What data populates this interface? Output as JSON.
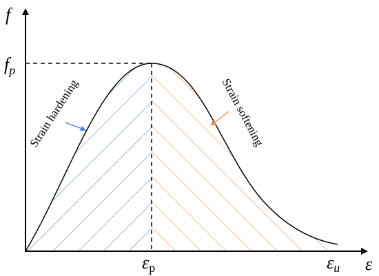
{
  "axes": {
    "y_label": "f",
    "x_label": "ε"
  },
  "ticks": {
    "peak_stress": {
      "base": "f",
      "sub": "p"
    },
    "peak_strain": {
      "base": "ε",
      "sub": "p"
    },
    "ultimate_strain": {
      "base": "ε",
      "sub": "u"
    }
  },
  "annotations": {
    "hardening": "Strain hardening",
    "softening": "Strain softening"
  }
}
